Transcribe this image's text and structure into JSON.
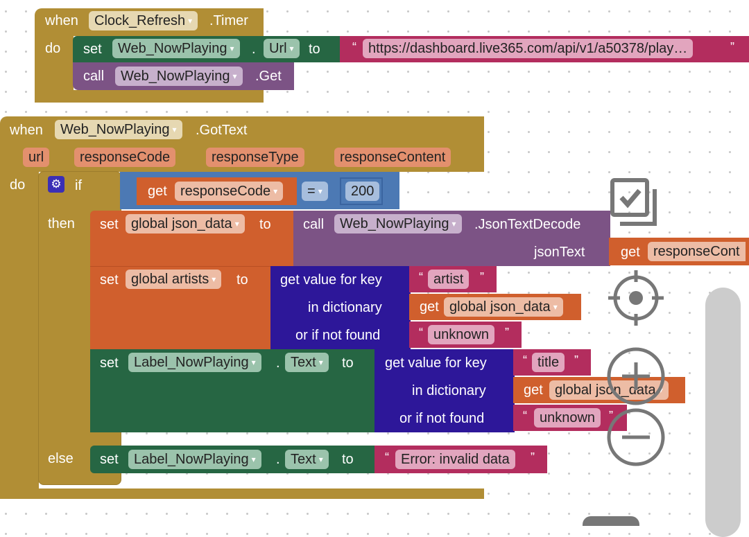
{
  "timer_event": {
    "when": "when",
    "component": "Clock_Refresh",
    "event": ".Timer",
    "do": "do",
    "set_url": {
      "set": "set",
      "component": "Web_NowPlaying",
      "dot": ".",
      "property": "Url",
      "to": "to",
      "value": "https://dashboard.live365.com/api/v1/a50378/play…"
    },
    "call_get": {
      "call": "call",
      "component": "Web_NowPlaying",
      "method": ".Get"
    }
  },
  "gottext_event": {
    "when": "when",
    "component": "Web_NowPlaying",
    "event": ".GotText",
    "params": [
      "url",
      "responseCode",
      "responseType",
      "responseContent"
    ],
    "do": "do",
    "if_block": {
      "if": "if",
      "then": "then",
      "else": "else",
      "condition": {
        "get": "get",
        "var": "responseCode",
        "op": "=",
        "value": "200"
      },
      "set_json": {
        "set": "set",
        "var": "global json_data",
        "to": "to",
        "call": "call",
        "component": "Web_NowPlaying",
        "method": ".JsonTextDecode",
        "arg_label": "jsonText",
        "get": "get",
        "arg_var": "responseCont"
      },
      "set_artists": {
        "set": "set",
        "var": "global artists",
        "to": "to",
        "lookup": "get value for key",
        "in_dict": "in dictionary",
        "not_found": "or if not found",
        "key": "artist",
        "get": "get",
        "dict_var": "global json_data",
        "default": "unknown"
      },
      "set_label": {
        "set": "set",
        "component": "Label_NowPlaying",
        "dot": ".",
        "property": "Text",
        "to": "to",
        "lookup": "get value for key",
        "in_dict": "in dictionary",
        "not_found": "or if not found",
        "key": "title",
        "get": "get",
        "dict_var": "global json_data",
        "default": "unknown"
      },
      "else_set": {
        "set": "set",
        "component": "Label_NowPlaying",
        "dot": ".",
        "property": "Text",
        "to": "to",
        "value": "Error:  invalid data"
      }
    }
  },
  "quote_open": "“",
  "quote_close": "”",
  "dropdown": "▾",
  "colors": {
    "event": "#B18E35",
    "component_set": "#266643",
    "component_call": "#7C5385",
    "text": "#B32D5E",
    "variable": "#D05F2D",
    "logic": "#4C79B4",
    "dictionary": "#2D1799"
  },
  "workspace_controls": [
    "checkbox-icon",
    "recenter-icon",
    "zoom-in-icon",
    "zoom-out-icon",
    "trash-icon"
  ]
}
